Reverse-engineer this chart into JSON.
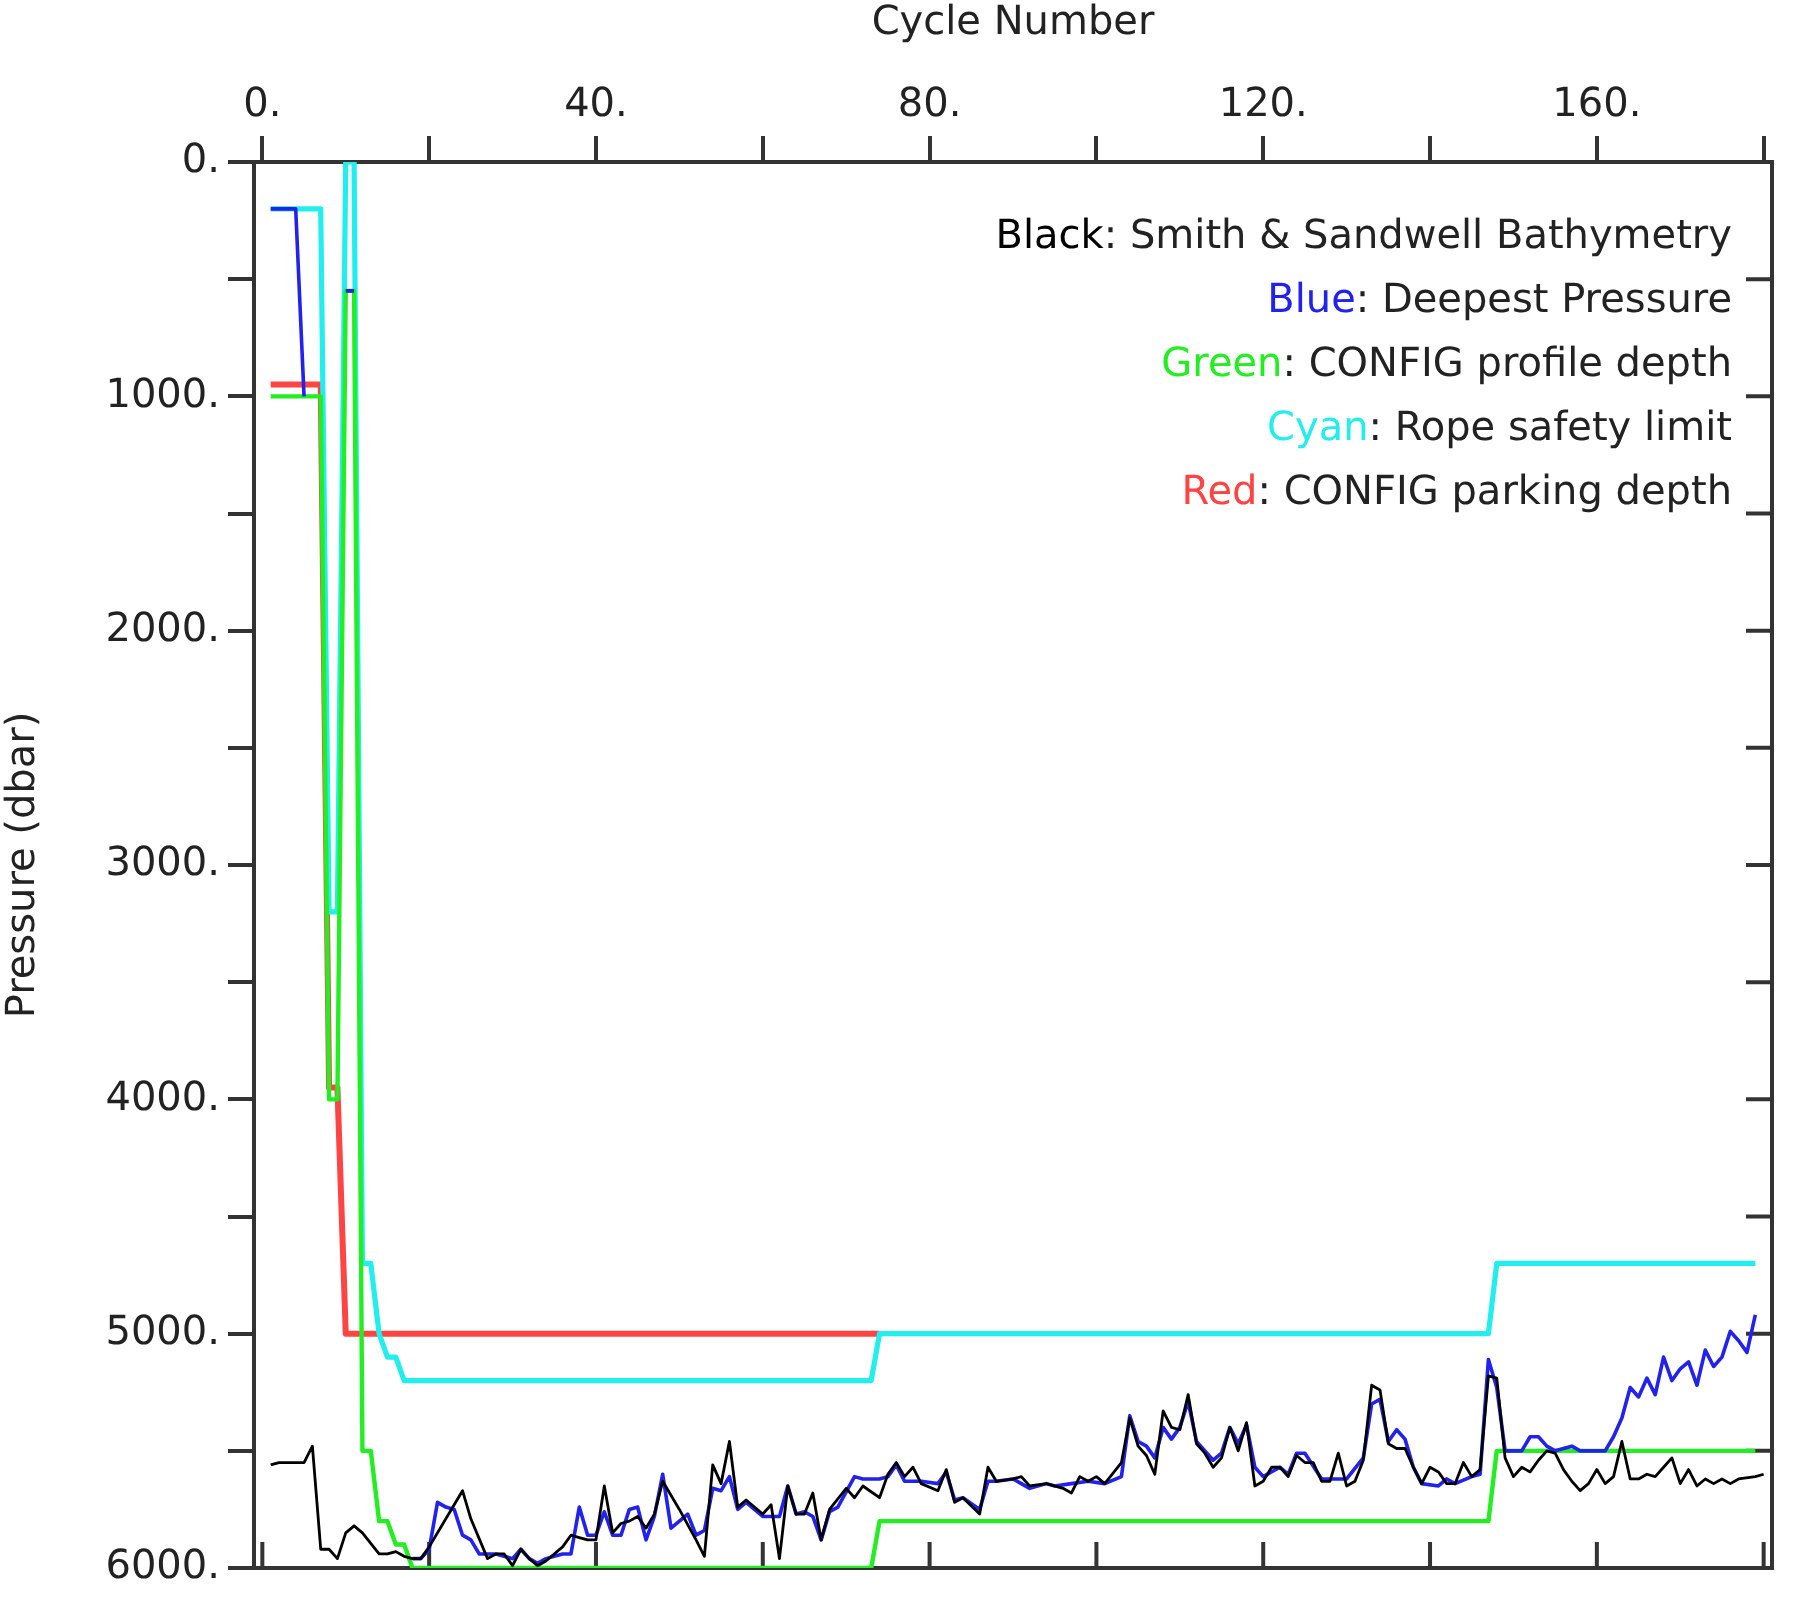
{
  "chart_data": {
    "type": "line",
    "xlabel": "Cycle Number",
    "ylabel": "Pressure (dbar)",
    "xlim": [
      -1,
      181
    ],
    "xticks": [
      {
        "value": 0,
        "label": "0."
      },
      {
        "value": 20,
        "label": null
      },
      {
        "value": 40,
        "label": "40."
      },
      {
        "value": 60,
        "label": null
      },
      {
        "value": 80,
        "label": "80."
      },
      {
        "value": 100,
        "label": null
      },
      {
        "value": 120,
        "label": "120."
      },
      {
        "value": 140,
        "label": null
      },
      {
        "value": 160,
        "label": "160."
      },
      {
        "value": 180,
        "label": null
      }
    ],
    "ylim": [
      6000,
      0
    ],
    "yticks": [
      {
        "value": 0,
        "label": "0."
      },
      {
        "value": 500,
        "label": null
      },
      {
        "value": 1000,
        "label": "1000."
      },
      {
        "value": 1500,
        "label": null
      },
      {
        "value": 2000,
        "label": "2000."
      },
      {
        "value": 2500,
        "label": null
      },
      {
        "value": 3000,
        "label": "3000."
      },
      {
        "value": 3500,
        "label": null
      },
      {
        "value": 4000,
        "label": "4000."
      },
      {
        "value": 4500,
        "label": null
      },
      {
        "value": 5000,
        "label": "5000."
      },
      {
        "value": 5500,
        "label": null
      },
      {
        "value": 6000,
        "label": "6000."
      }
    ],
    "legend": "top right",
    "line_style": "solid",
    "series": [
      {
        "name": "Black: Smith & Sandwell Bathymetry",
        "color": "#000000",
        "x": [
          1,
          2,
          5,
          6,
          7,
          8,
          9,
          10,
          11,
          12,
          14,
          15,
          16,
          17,
          18,
          19,
          20,
          24,
          25,
          27,
          28,
          29,
          30,
          31,
          32,
          33,
          34,
          36,
          37,
          38,
          39,
          40,
          41,
          42,
          43,
          44,
          45,
          46,
          47,
          48,
          50,
          52,
          53,
          54,
          55,
          56,
          57,
          58,
          60,
          61,
          62,
          63,
          64,
          65,
          66,
          67,
          68,
          70,
          71,
          72,
          74,
          75,
          76,
          77,
          78,
          79,
          81,
          82,
          83,
          84,
          86,
          87,
          88,
          90,
          91,
          92,
          94,
          96,
          97,
          98,
          99,
          100,
          101,
          103,
          104,
          105,
          106,
          107,
          108,
          109,
          110,
          111,
          112,
          113,
          114,
          115,
          116,
          117,
          118,
          119,
          120,
          121,
          122,
          123,
          124,
          125,
          126,
          127,
          128,
          129,
          130,
          131,
          132,
          133,
          134,
          135,
          136,
          137,
          138,
          139,
          140,
          141,
          142,
          143,
          144,
          145,
          146,
          147,
          148,
          149,
          150,
          151,
          152,
          153,
          154,
          155,
          156,
          157,
          158,
          159,
          160,
          161,
          162,
          163,
          164,
          165,
          166,
          167,
          168,
          169,
          170,
          171,
          172,
          173,
          174,
          175,
          176,
          177,
          179,
          180
        ],
        "values": [
          5560,
          5550,
          5550,
          5480,
          5920,
          5920,
          5960,
          5850,
          5820,
          5850,
          5940,
          5940,
          5930,
          5950,
          5960,
          5960,
          5910,
          5670,
          5790,
          5960,
          5940,
          5940,
          5990,
          5920,
          5960,
          5990,
          5970,
          5910,
          5860,
          5870,
          5880,
          5880,
          5650,
          5850,
          5810,
          5800,
          5780,
          5830,
          5770,
          5630,
          5750,
          5880,
          5950,
          5560,
          5640,
          5460,
          5740,
          5710,
          5770,
          5730,
          5960,
          5650,
          5770,
          5770,
          5680,
          5880,
          5750,
          5660,
          5700,
          5650,
          5700,
          5600,
          5550,
          5610,
          5570,
          5640,
          5670,
          5580,
          5720,
          5700,
          5770,
          5570,
          5630,
          5620,
          5610,
          5650,
          5640,
          5660,
          5680,
          5610,
          5630,
          5610,
          5640,
          5550,
          5360,
          5480,
          5520,
          5600,
          5330,
          5400,
          5410,
          5260,
          5470,
          5510,
          5570,
          5530,
          5400,
          5500,
          5380,
          5650,
          5630,
          5570,
          5570,
          5610,
          5520,
          5550,
          5550,
          5630,
          5630,
          5510,
          5650,
          5630,
          5540,
          5220,
          5240,
          5470,
          5490,
          5490,
          5570,
          5640,
          5570,
          5590,
          5640,
          5640,
          5550,
          5610,
          5580,
          5180,
          5190,
          5530,
          5610,
          5570,
          5590,
          5540,
          5500,
          5510,
          5580,
          5630,
          5670,
          5640,
          5580,
          5640,
          5610,
          5460,
          5620,
          5620,
          5600,
          5610,
          5570,
          5530,
          5640,
          5580,
          5650,
          5620,
          5640,
          5620,
          5640,
          5620,
          5610,
          5600
        ]
      },
      {
        "name": "Blue: Deepest Pressure",
        "color": "#2222ee",
        "x": [
          1,
          4,
          5,
          6,
          10,
          11,
          12,
          18,
          19,
          20,
          21,
          22,
          23,
          24,
          25,
          26,
          28,
          30,
          31,
          32,
          33,
          34,
          36,
          37,
          38,
          39,
          40,
          41,
          42,
          43,
          44,
          45,
          46,
          47,
          48,
          49,
          51,
          52,
          53,
          54,
          55,
          56,
          57,
          58,
          60,
          62,
          63,
          64,
          65,
          66,
          67,
          68,
          69,
          71,
          72,
          74,
          75,
          76,
          77,
          79,
          81,
          82,
          83,
          84,
          86,
          87,
          88,
          90,
          92,
          94,
          95,
          97,
          99,
          101,
          103,
          104,
          105,
          106,
          107,
          108,
          109,
          110,
          111,
          112,
          114,
          115,
          116,
          117,
          118,
          119,
          120,
          122,
          123,
          124,
          125,
          127,
          130,
          132,
          133,
          134,
          135,
          136,
          137,
          138,
          139,
          141,
          142,
          143,
          145,
          146,
          147,
          148,
          149,
          151,
          152,
          153,
          154,
          155,
          157,
          158,
          161,
          162,
          163,
          164,
          165,
          166,
          167,
          168,
          169,
          170,
          171,
          172,
          173,
          174,
          175,
          176,
          177,
          178,
          179
        ],
        "values": [
          200,
          200,
          1000,
          null,
          550,
          550,
          null,
          5960,
          5960,
          5920,
          5720,
          5740,
          5750,
          5860,
          5880,
          5940,
          5940,
          5960,
          5920,
          5960,
          5980,
          5960,
          5940,
          5940,
          5740,
          5860,
          5860,
          5760,
          5860,
          5860,
          5750,
          5740,
          5880,
          5780,
          5600,
          5830,
          5770,
          5860,
          5840,
          5660,
          5670,
          5610,
          5750,
          5720,
          5780,
          5780,
          5650,
          5770,
          5760,
          5780,
          5880,
          5760,
          5740,
          5610,
          5620,
          5620,
          5610,
          5560,
          5630,
          5630,
          5640,
          5590,
          5710,
          5700,
          5750,
          5630,
          5630,
          5620,
          5660,
          5640,
          5650,
          5640,
          5630,
          5640,
          5610,
          5350,
          5460,
          5480,
          5530,
          5400,
          5450,
          5400,
          5290,
          5460,
          5540,
          5510,
          5400,
          5470,
          5390,
          5570,
          5610,
          5570,
          5600,
          5510,
          5510,
          5620,
          5620,
          5530,
          5300,
          5280,
          5460,
          5410,
          5450,
          5570,
          5640,
          5650,
          5620,
          5640,
          5610,
          5600,
          5110,
          5230,
          5500,
          5500,
          5440,
          5440,
          5480,
          5500,
          5480,
          5500,
          5500,
          5440,
          5360,
          5230,
          5270,
          5190,
          5260,
          5100,
          5200,
          5150,
          5120,
          5220,
          5070,
          5140,
          5100,
          4990,
          5030,
          5080,
          4920
        ]
      },
      {
        "name": "Green: CONFIG profile depth",
        "color": "#22ee22",
        "x": [
          1,
          7,
          8,
          9,
          10,
          11,
          12,
          13,
          14,
          15,
          16,
          17,
          18,
          73,
          74,
          147,
          148,
          179
        ],
        "values": [
          1000,
          1000,
          4000,
          4000,
          550,
          550,
          5500,
          5500,
          5800,
          5800,
          5900,
          5900,
          6000,
          6000,
          5800,
          5800,
          5500,
          5500
        ]
      },
      {
        "name": "Cyan: Rope safety limit",
        "color": "#22eeee",
        "x": [
          1,
          7,
          8,
          9,
          10,
          11,
          12,
          13,
          14,
          15,
          16,
          17,
          73,
          74,
          147,
          148,
          179
        ],
        "values": [
          200,
          200,
          3200,
          3200,
          0,
          0,
          4700,
          4700,
          5000,
          5100,
          5100,
          5200,
          5200,
          5000,
          5000,
          4700,
          4700
        ]
      },
      {
        "name": "Red: CONFIG parking depth",
        "color": "#ff4444",
        "x": [
          1,
          7,
          8,
          9,
          10,
          74
        ],
        "values": [
          950,
          950,
          3950,
          3950,
          5000,
          5000
        ]
      }
    ]
  }
}
